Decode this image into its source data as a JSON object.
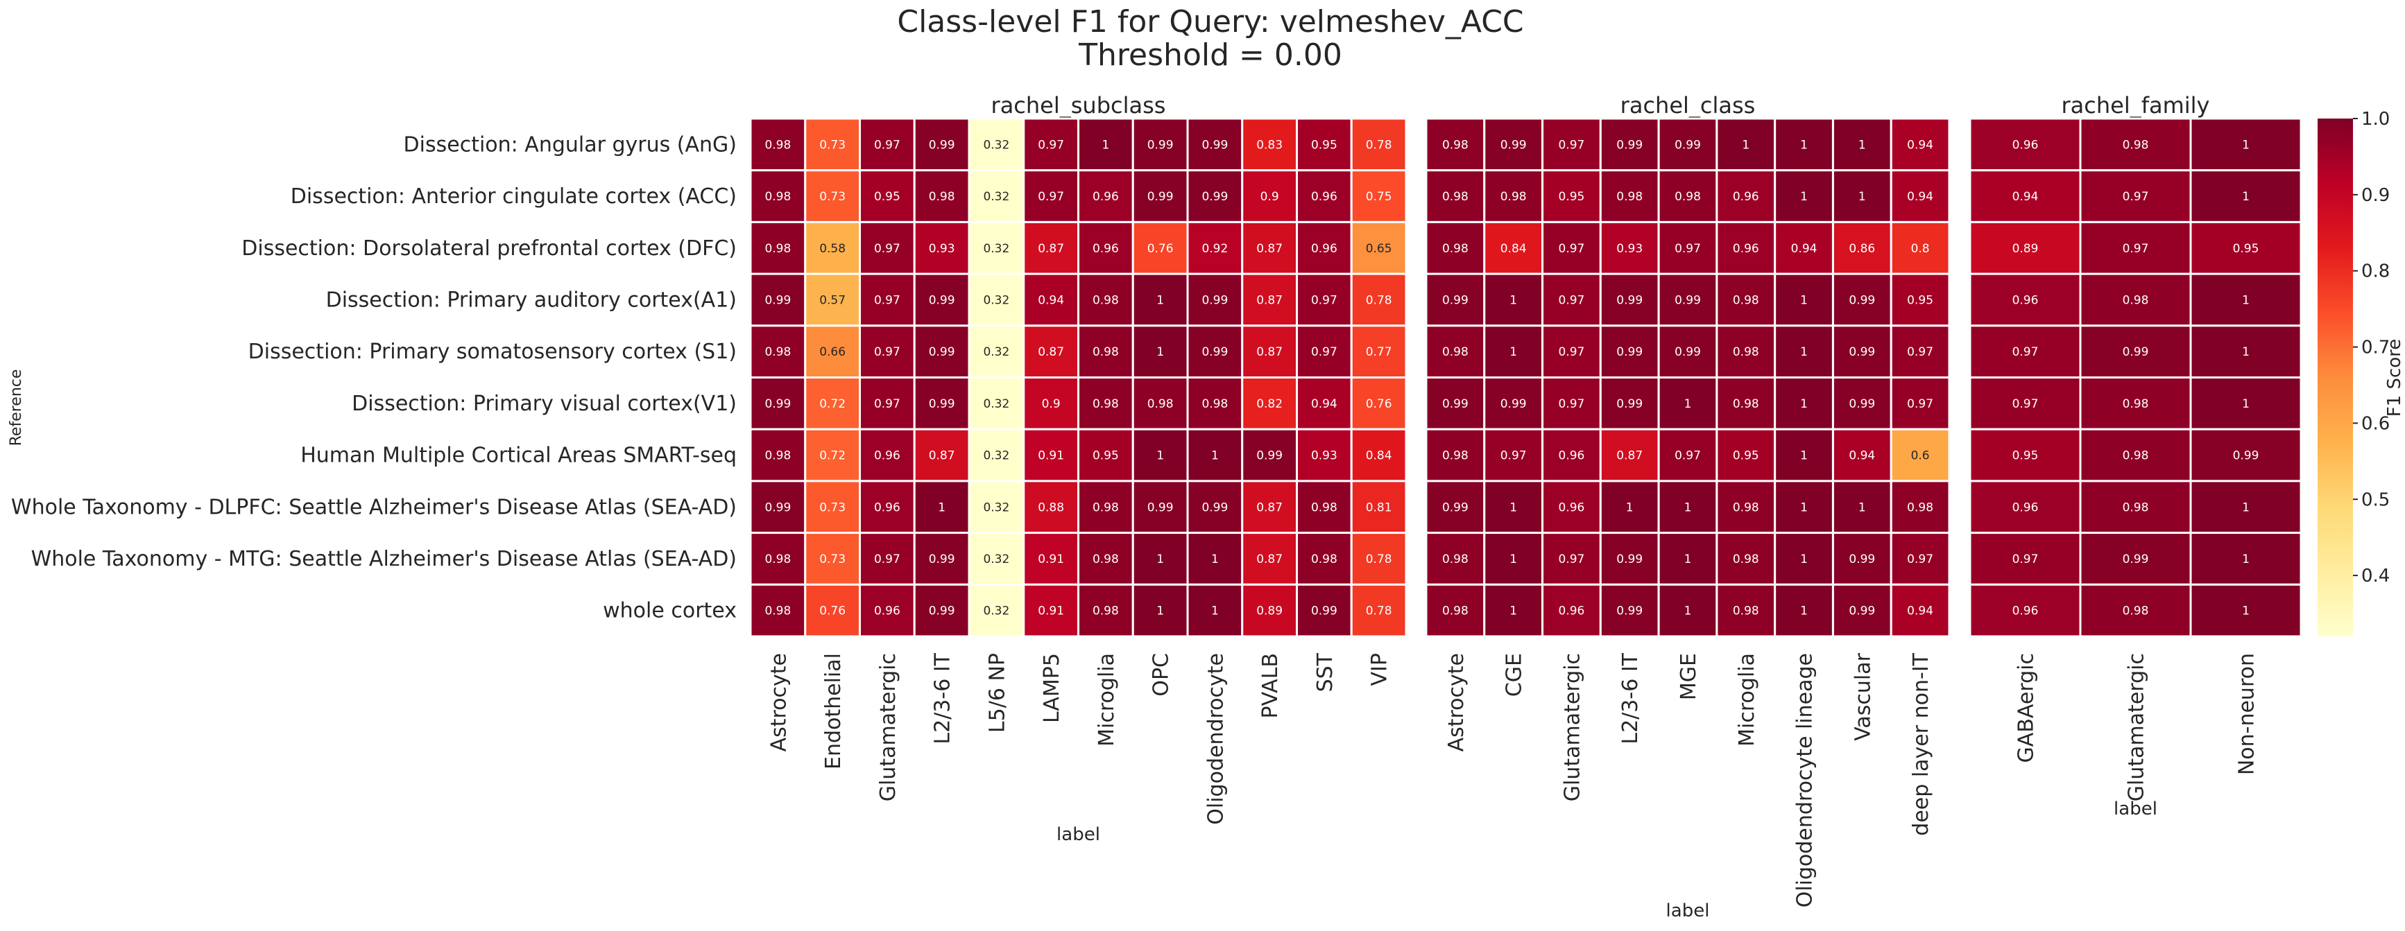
{
  "chart_data": {
    "type": "heatmap",
    "title": "Class-level F1 for Query: velmeshev_ACC",
    "subtitle": "Threshold = 0.00",
    "ylabel": "Reference",
    "rows": [
      "Dissection: Angular gyrus (AnG)",
      "Dissection: Anterior cingulate cortex (ACC)",
      "Dissection: Dorsolateral prefrontal cortex (DFC)",
      "Dissection: Primary auditory cortex(A1)",
      "Dissection: Primary somatosensory cortex (S1)",
      "Dissection: Primary visual cortex(V1)",
      "Human Multiple Cortical Areas SMART-seq",
      "Whole Taxonomy - DLPFC: Seattle Alzheimer's Disease Atlas (SEA-AD)",
      "Whole Taxonomy - MTG: Seattle Alzheimer's Disease Atlas (SEA-AD)",
      "whole cortex"
    ],
    "colorbar": {
      "label": "F1 Score",
      "range": [
        0.32,
        1.0
      ],
      "ticks": [
        "0.4",
        "0.5",
        "0.6",
        "0.7",
        "0.8",
        "0.9",
        "1.0"
      ],
      "tick_values": [
        0.4,
        0.5,
        0.6,
        0.7,
        0.8,
        0.9,
        1.0
      ],
      "colormap": "YlOrRd"
    },
    "panels": [
      {
        "title": "rachel_subclass",
        "xlabel": "label",
        "columns": [
          "Astrocyte",
          "Endothelial",
          "Glutamatergic",
          "L2/3-6 IT",
          "L5/6 NP",
          "LAMP5",
          "Microglia",
          "OPC",
          "Oligodendrocyte",
          "PVALB",
          "SST",
          "VIP"
        ],
        "values": [
          [
            0.98,
            0.73,
            0.97,
            0.99,
            0.32,
            0.97,
            1,
            0.99,
            0.99,
            0.83,
            0.95,
            0.78
          ],
          [
            0.98,
            0.73,
            0.95,
            0.98,
            0.32,
            0.97,
            0.96,
            0.99,
            0.99,
            0.9,
            0.96,
            0.75
          ],
          [
            0.98,
            0.58,
            0.97,
            0.93,
            0.32,
            0.87,
            0.96,
            0.76,
            0.92,
            0.87,
            0.96,
            0.65
          ],
          [
            0.99,
            0.57,
            0.97,
            0.99,
            0.32,
            0.94,
            0.98,
            1,
            0.99,
            0.87,
            0.97,
            0.78
          ],
          [
            0.98,
            0.66,
            0.97,
            0.99,
            0.32,
            0.87,
            0.98,
            1,
            0.99,
            0.87,
            0.97,
            0.77
          ],
          [
            0.99,
            0.72,
            0.97,
            0.99,
            0.32,
            0.9,
            0.98,
            0.98,
            0.98,
            0.82,
            0.94,
            0.76
          ],
          [
            0.98,
            0.72,
            0.96,
            0.87,
            0.32,
            0.91,
            0.95,
            1,
            1,
            0.99,
            0.93,
            0.84
          ],
          [
            0.99,
            0.73,
            0.96,
            1,
            0.32,
            0.88,
            0.98,
            0.99,
            0.99,
            0.87,
            0.98,
            0.81
          ],
          [
            0.98,
            0.73,
            0.97,
            0.99,
            0.32,
            0.91,
            0.98,
            1,
            1,
            0.87,
            0.98,
            0.78
          ],
          [
            0.98,
            0.76,
            0.96,
            0.99,
            0.32,
            0.91,
            0.98,
            1,
            1,
            0.89,
            0.99,
            0.78
          ]
        ]
      },
      {
        "title": "rachel_class",
        "xlabel": "label",
        "columns": [
          "Astrocyte",
          "CGE",
          "Glutamatergic",
          "L2/3-6 IT",
          "MGE",
          "Microglia",
          "Oligodendrocyte lineage",
          "Vascular",
          "deep layer non-IT"
        ],
        "values": [
          [
            0.98,
            0.99,
            0.97,
            0.99,
            0.99,
            1,
            1,
            1,
            0.94
          ],
          [
            0.98,
            0.98,
            0.95,
            0.98,
            0.98,
            0.96,
            1,
            1,
            0.94
          ],
          [
            0.98,
            0.84,
            0.97,
            0.93,
            0.97,
            0.96,
            0.94,
            0.86,
            0.8
          ],
          [
            0.99,
            1,
            0.97,
            0.99,
            0.99,
            0.98,
            1,
            0.99,
            0.95
          ],
          [
            0.98,
            1,
            0.97,
            0.99,
            0.99,
            0.98,
            1,
            0.99,
            0.97
          ],
          [
            0.99,
            0.99,
            0.97,
            0.99,
            1,
            0.98,
            1,
            0.99,
            0.97
          ],
          [
            0.98,
            0.97,
            0.96,
            0.87,
            0.97,
            0.95,
            1,
            0.94,
            0.6
          ],
          [
            0.99,
            1,
            0.96,
            1,
            1,
            0.98,
            1,
            1,
            0.98
          ],
          [
            0.98,
            1,
            0.97,
            0.99,
            1,
            0.98,
            1,
            0.99,
            0.97
          ],
          [
            0.98,
            1,
            0.96,
            0.99,
            1,
            0.98,
            1,
            0.99,
            0.94
          ]
        ]
      },
      {
        "title": "rachel_family",
        "xlabel": "label",
        "columns": [
          "GABAergic",
          "Glutamatergic",
          "Non-neuron"
        ],
        "values": [
          [
            0.96,
            0.98,
            1
          ],
          [
            0.94,
            0.97,
            1
          ],
          [
            0.89,
            0.97,
            0.95
          ],
          [
            0.96,
            0.98,
            1
          ],
          [
            0.97,
            0.99,
            1
          ],
          [
            0.97,
            0.98,
            1
          ],
          [
            0.95,
            0.98,
            0.99
          ],
          [
            0.96,
            0.98,
            1
          ],
          [
            0.97,
            0.99,
            1
          ],
          [
            0.96,
            0.98,
            1
          ]
        ]
      }
    ]
  }
}
